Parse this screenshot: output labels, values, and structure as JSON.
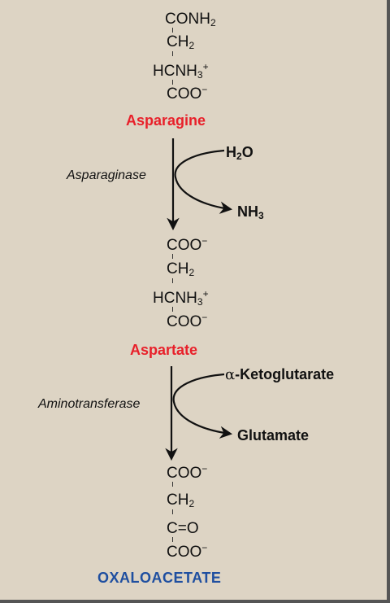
{
  "asparagine": {
    "lines": [
      "CONH",
      "CH",
      "HCNH",
      "COO"
    ],
    "name": "Asparagine",
    "color": "#e8202a"
  },
  "step1": {
    "enzyme": "Asparaginase",
    "input": "H",
    "input_rest": "O",
    "output": "NH"
  },
  "aspartate": {
    "lines": [
      "COO",
      "CH",
      "HCNH",
      "COO"
    ],
    "name": "Aspartate",
    "color": "#e8202a"
  },
  "step2": {
    "enzyme": "Aminotransferase",
    "input_prefix": "α",
    "input": "-Ketoglutarate",
    "output": "Glutamate"
  },
  "oxaloacetate": {
    "lines": [
      "COO",
      "CH",
      "C=O",
      "COO"
    ],
    "name": "OXALOACETATE",
    "color": "#1f4fa0"
  },
  "subscripts": {
    "two": "2",
    "three": "3"
  },
  "charges": {
    "plus": "+",
    "minus": "−"
  }
}
